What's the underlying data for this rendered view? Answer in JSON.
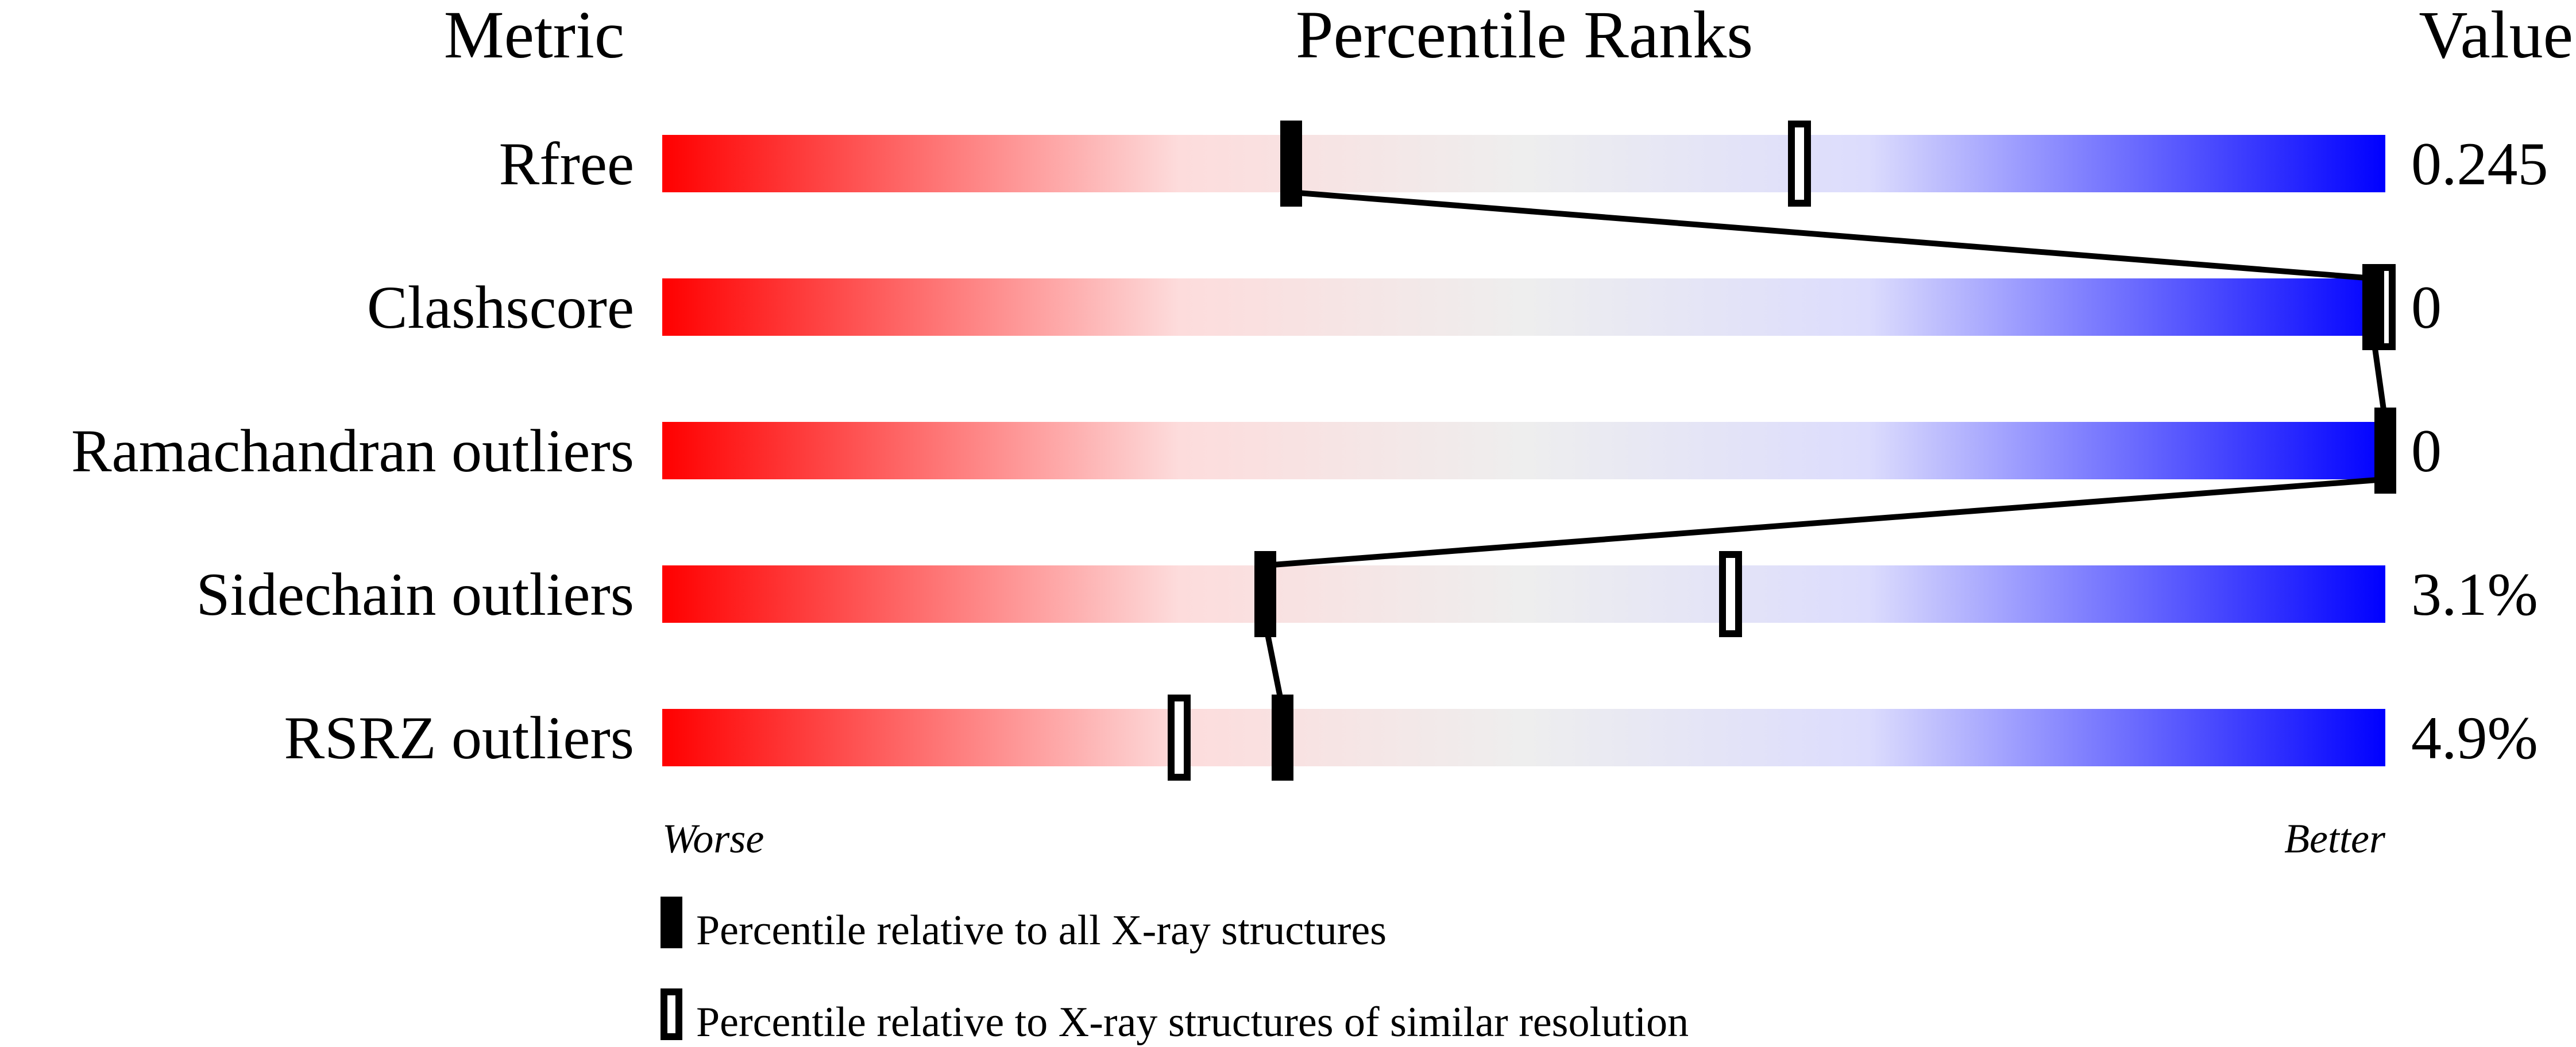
{
  "chart_data": {
    "type": "percentile-slider",
    "headers": {
      "metric": "Metric",
      "ranks": "Percentile Ranks",
      "value": "Value"
    },
    "xlim": [
      0,
      100
    ],
    "axis_labels": {
      "left": "Worse",
      "right": "Better"
    },
    "gradient_colors": [
      "#ff0000",
      "#fddcdc",
      "#eeeeee",
      "#dcdcfd",
      "#0000ff"
    ],
    "rows": [
      {
        "metric": "Rfree",
        "value": "0.245",
        "percentile_all": 36.5,
        "percentile_similar": 66
      },
      {
        "metric": "Clashscore",
        "value": "0",
        "percentile_all": 99.3,
        "percentile_similar": 100
      },
      {
        "metric": "Ramachandran outliers",
        "value": "0",
        "percentile_all": 100,
        "percentile_similar": null
      },
      {
        "metric": "Sidechain outliers",
        "value": "3.1%",
        "percentile_all": 35,
        "percentile_similar": 62
      },
      {
        "metric": "RSRZ outliers",
        "value": "4.9%",
        "percentile_all": 36,
        "percentile_similar": 30
      }
    ],
    "legend": [
      {
        "marker": "filled",
        "label": "Percentile relative to all X-ray structures"
      },
      {
        "marker": "open",
        "label": "Percentile relative to X-ray structures of similar resolution"
      }
    ]
  }
}
